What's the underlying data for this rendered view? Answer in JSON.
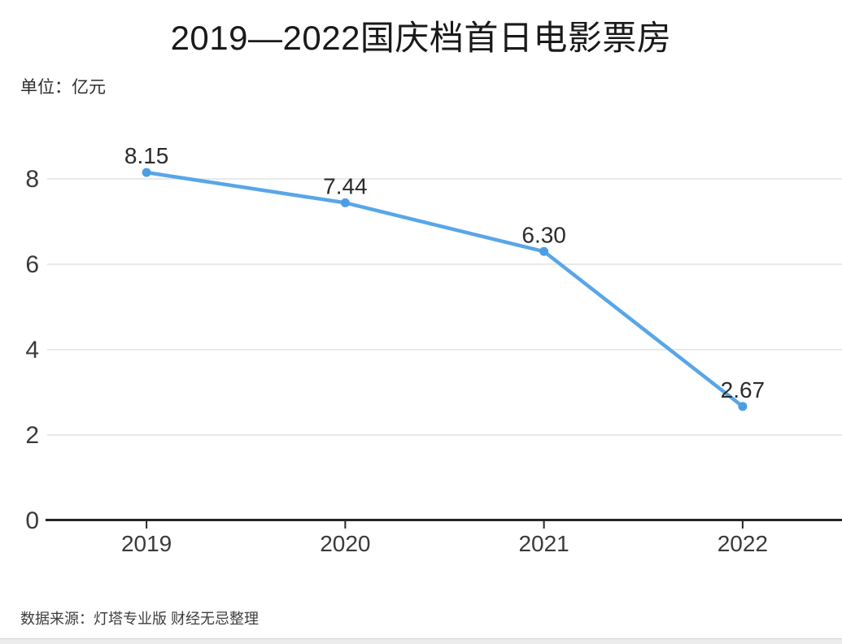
{
  "title": "2019—2022国庆档首日电影票房",
  "unit_label": "单位：亿元",
  "source": "数据来源：灯塔专业版 财经无忌整理",
  "chart_data": {
    "type": "line",
    "title": "2019—2022国庆档首日电影票房",
    "ylabel": "亿元",
    "categories": [
      "2019",
      "2020",
      "2021",
      "2022"
    ],
    "values": [
      8.15,
      7.44,
      6.3,
      2.67
    ],
    "value_labels": [
      "8.15",
      "7.44",
      "6.30",
      "2.67"
    ],
    "ylim": [
      0,
      9
    ],
    "yticks": [
      0,
      2,
      4,
      6,
      8
    ],
    "ytick_labels": [
      "0",
      "2",
      "4",
      "6",
      "8"
    ],
    "grid": true,
    "legend": false,
    "colors": {
      "line": "#58A6E8",
      "marker": "#4B9EE5",
      "grid": "#e2e2e2",
      "axis": "#262626",
      "tick_label": "#3a3a3a",
      "data_label": "#2b2b2b"
    }
  }
}
